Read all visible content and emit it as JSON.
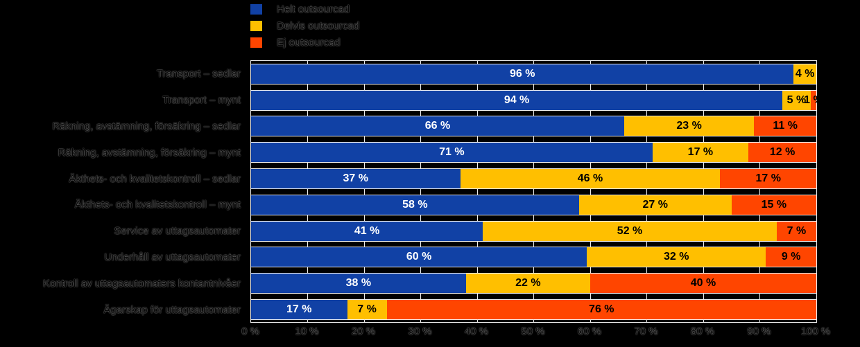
{
  "colors": {
    "background": "#000000",
    "series_helt": "#1141A5",
    "series_delvis": "#FFBF00",
    "series_ej": "#FF4500",
    "gridline": "#ECECEC",
    "label_on_blue": "#FFFFFF",
    "label_on_warm": "#000000"
  },
  "chart_data": {
    "type": "bar",
    "orientation": "horizontal",
    "stacked": true,
    "grid": true,
    "legend_position": "top-left",
    "unit": "%",
    "xlim": [
      0,
      100
    ],
    "x_ticks": [
      "0 %",
      "10 %",
      "20 %",
      "30 %",
      "40 %",
      "50 %",
      "60 %",
      "70 %",
      "80 %",
      "90 %",
      "100 %"
    ],
    "categories": [
      "Transport – sedlar",
      "Transport – mynt",
      "Räkning, avstämning, försäkring – sedlar",
      "Räkning, avstämning, försäkring – mynt",
      "Äkthets- och kvalitetskontroll – sedlar",
      "Äkthets- och kvalitetskontroll – mynt",
      "Service av uttagsautomater",
      "Underhåll av uttagsautomater",
      "Kontroll av uttagsautomaters kontantnivåer",
      "Ägarskap för uttagsautomater"
    ],
    "series": [
      {
        "name": "Helt outsourcad",
        "color": "#1141A5",
        "text_color": "#FFFFFF",
        "values": [
          96,
          94,
          66,
          71,
          37,
          58,
          41,
          60,
          38,
          17
        ]
      },
      {
        "name": "Delvis outsourcad",
        "color": "#FFBF00",
        "text_color": "#000000",
        "values": [
          4,
          5,
          23,
          17,
          46,
          27,
          52,
          32,
          22,
          7
        ]
      },
      {
        "name": "Ej outsourcad",
        "color": "#FF4500",
        "text_color": "#000000",
        "values": [
          0,
          1,
          11,
          12,
          17,
          15,
          7,
          9,
          40,
          76
        ]
      }
    ],
    "value_label_format": "{v} %"
  }
}
